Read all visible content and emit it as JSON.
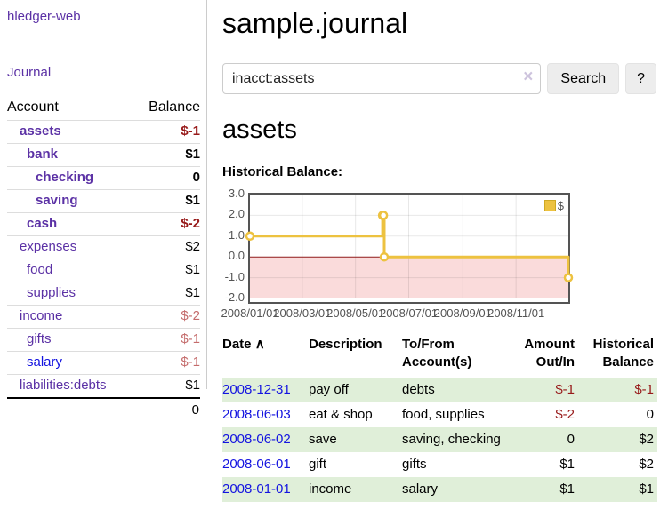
{
  "app": {
    "brand": "hledger-web",
    "nav_journal": "Journal"
  },
  "sidebar": {
    "headers": {
      "account": "Account",
      "balance": "Balance"
    },
    "accounts": [
      {
        "name": "assets",
        "level": 1,
        "balance": "$-1",
        "bold": true,
        "negative": "strong"
      },
      {
        "name": "bank",
        "level": 2,
        "balance": "$1",
        "bold": true
      },
      {
        "name": "checking",
        "level": 3,
        "balance": "0",
        "bold": true
      },
      {
        "name": "saving",
        "level": 3,
        "balance": "$1",
        "bold": true
      },
      {
        "name": "cash",
        "level": 2,
        "balance": "$-2",
        "bold": true,
        "negative": "strong"
      },
      {
        "name": "expenses",
        "level": 1,
        "balance": "$2"
      },
      {
        "name": "food",
        "level": 2,
        "balance": "$1"
      },
      {
        "name": "supplies",
        "level": 2,
        "balance": "$1"
      },
      {
        "name": "income",
        "level": 1,
        "balance": "$-2",
        "negative": "soft"
      },
      {
        "name": "gifts",
        "level": 2,
        "balance": "$-1",
        "negative": "soft"
      },
      {
        "name": "salary",
        "level": 2,
        "balance": "$-1",
        "negative": "soft",
        "link_style": "unvisited"
      },
      {
        "name": "liabilities:debts",
        "level": 1,
        "balance": "$1"
      }
    ],
    "total": "0"
  },
  "header": {
    "title": "sample.journal"
  },
  "search": {
    "value": "inacct:assets",
    "clear_icon": "×",
    "button_label": "Search",
    "help_label": "?"
  },
  "account_page": {
    "heading": "assets",
    "chart_label": "Historical Balance:"
  },
  "chart_data": {
    "type": "line",
    "title": "Historical Balance",
    "steps": true,
    "x_range": [
      "2008-01-01",
      "2008-12-31"
    ],
    "ylim": [
      -2,
      3
    ],
    "y_ticks": [
      {
        "v": 3,
        "label": "3.0"
      },
      {
        "v": 2,
        "label": "2.0"
      },
      {
        "v": 1,
        "label": "1.0"
      },
      {
        "v": 0,
        "label": "0.0"
      },
      {
        "v": -1,
        "label": "-1.0"
      },
      {
        "v": -2,
        "label": "-2.0"
      }
    ],
    "x_ticks": [
      {
        "date": "2008-01-01",
        "label": "2008/01/01"
      },
      {
        "date": "2008-03-01",
        "label": "2008/03/01"
      },
      {
        "date": "2008-05-01",
        "label": "2008/05/01"
      },
      {
        "date": "2008-07-01",
        "label": "2008/07/01"
      },
      {
        "date": "2008-09-01",
        "label": "2008/09/01"
      },
      {
        "date": "2008-11-01",
        "label": "2008/11/01"
      }
    ],
    "series": [
      {
        "name": "$",
        "color": "#edc240",
        "points": [
          [
            "2008-01-01",
            1
          ],
          [
            "2008-06-01",
            2
          ],
          [
            "2008-06-02",
            2
          ],
          [
            "2008-06-03",
            0
          ],
          [
            "2008-12-31",
            -1
          ]
        ]
      }
    ],
    "legend_position": "top-right",
    "grid_color": "rgba(0,0,0,0.09)",
    "border_color": "#545454",
    "zero_line_color": "#8f1a1a",
    "negative_region_color": "#fadbdb"
  },
  "register": {
    "columns": [
      {
        "line1": "Date",
        "sort": "∧"
      },
      {
        "line1": "Description"
      },
      {
        "line1": "To/From",
        "line2": "Account(s)"
      },
      {
        "line1": "Amount",
        "line2": "Out/In",
        "align": "right"
      },
      {
        "line1": "Historical",
        "line2": "Balance",
        "align": "right"
      }
    ],
    "rows": [
      {
        "date": "2008-12-31",
        "description": "pay off",
        "accounts": "debts",
        "amount": "$-1",
        "balance": "$-1",
        "amount_neg": true,
        "balance_neg": true,
        "shade": true
      },
      {
        "date": "2008-06-03",
        "description": "eat & shop",
        "accounts": "food, supplies",
        "amount": "$-2",
        "balance": "0",
        "amount_neg": true
      },
      {
        "date": "2008-06-02",
        "description": "save",
        "accounts": "saving, checking",
        "amount": "0",
        "balance": "$2",
        "shade": true
      },
      {
        "date": "2008-06-01",
        "description": "gift",
        "accounts": "gifts",
        "amount": "$1",
        "balance": "$2"
      },
      {
        "date": "2008-01-01",
        "description": "income",
        "accounts": "salary",
        "amount": "$1",
        "balance": "$1",
        "shade": true
      }
    ]
  }
}
